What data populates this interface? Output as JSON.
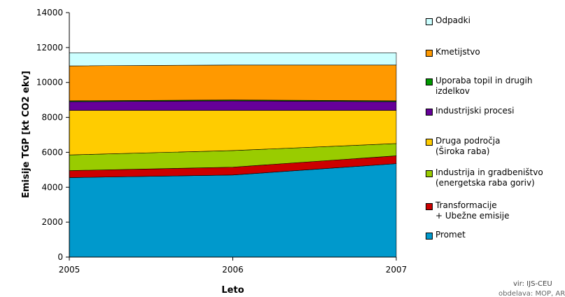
{
  "chart_data": {
    "type": "area",
    "stacked": true,
    "x": [
      2005,
      2006,
      2007
    ],
    "xlabel": "Leto",
    "ylabel": "Emisije TGP [kt CO2 ekv]",
    "ylim": [
      0,
      14000
    ],
    "yticks": [
      0,
      2000,
      4000,
      6000,
      8000,
      10000,
      12000,
      14000
    ],
    "xticks": [
      "2005",
      "2006",
      "2007"
    ],
    "grid": false,
    "legend_position": "right",
    "series": [
      {
        "name": "Promet",
        "values": [
          4550,
          4700,
          5350
        ],
        "color": "#0099CC"
      },
      {
        "name": "Transformacije\n   + Ubežne emisije",
        "values": [
          400,
          450,
          450
        ],
        "color": "#CC0000"
      },
      {
        "name": "Industrija in gradbeništvo\n(energetska raba goriv)",
        "values": [
          900,
          950,
          700
        ],
        "color": "#99CC00"
      },
      {
        "name": "Druga področja\n(Široka raba)",
        "values": [
          2550,
          2300,
          1900
        ],
        "color": "#FFCC00"
      },
      {
        "name": "Industrijski procesi",
        "values": [
          500,
          550,
          500
        ],
        "color": "#660099"
      },
      {
        "name": "Uporaba topil in drugih\nizdelkov",
        "values": [
          50,
          50,
          50
        ],
        "color": "#009900"
      },
      {
        "name": "Kmetijstvo",
        "values": [
          2000,
          2000,
          2050
        ],
        "color": "#FF9900"
      },
      {
        "name": "Odpadki",
        "values": [
          750,
          700,
          700
        ],
        "color": "#CCFFFF"
      }
    ]
  },
  "source": {
    "line1": "vir: IJS-CEU",
    "line2": "obdelava: MOP, ARSO"
  }
}
